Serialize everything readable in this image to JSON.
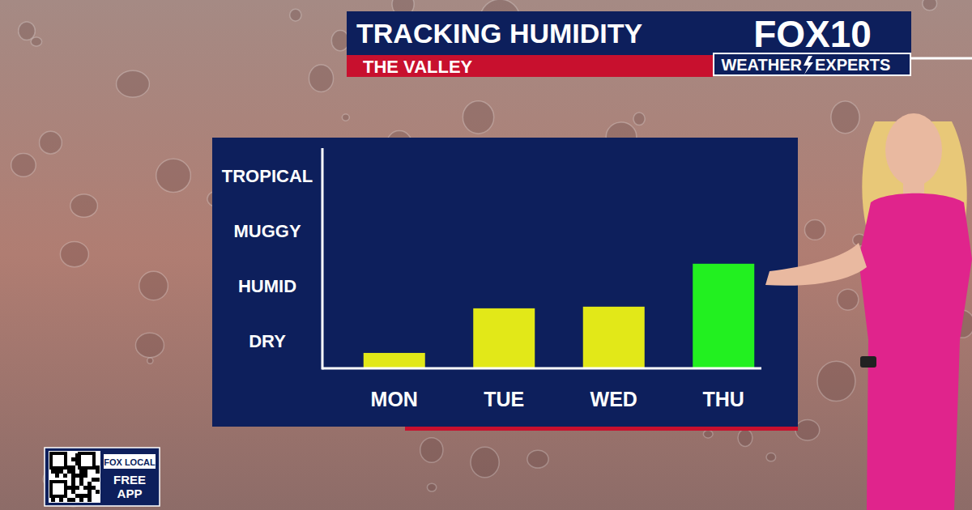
{
  "chart_data": {
    "type": "bar",
    "title": "TRACKING HUMIDITY",
    "subtitle": "THE VALLEY",
    "categories": [
      "MON",
      "TUE",
      "WED",
      "THU"
    ],
    "values": [
      0.28,
      1.09,
      1.12,
      1.9
    ],
    "colors": [
      "#e2e818",
      "#e2e818",
      "#e2e818",
      "#22f020"
    ],
    "ylim": [
      0,
      4
    ],
    "yticks": [
      {
        "value": 0.5,
        "label": "DRY"
      },
      {
        "value": 1.5,
        "label": "HUMID"
      },
      {
        "value": 2.5,
        "label": "MUGGY"
      },
      {
        "value": 3.5,
        "label": "TROPICAL"
      }
    ],
    "grid": false,
    "annotations": [
      "FOX10",
      "WEATHER",
      "EXPERTS",
      "FOX LOCAL",
      "FREE APP"
    ]
  }
}
